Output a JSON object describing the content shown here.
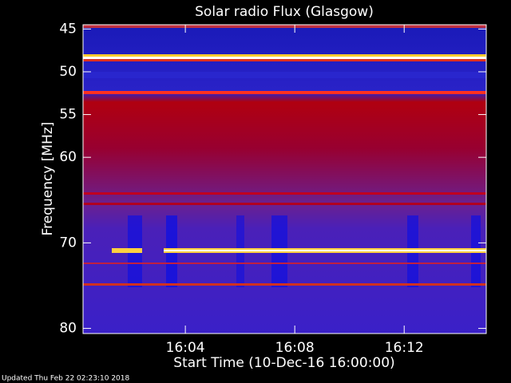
{
  "chart_data": {
    "type": "spectrogram",
    "title": "Solar radio Flux (Glasgow)",
    "xlabel": "Start Time (10-Dec-16 16:00:00)",
    "ylabel": "Frequency [MHz]",
    "footer": "Updated Thu Feb 22 02:23:10 2018",
    "xlim": [
      0.26,
      15.0
    ],
    "xticks": [
      {
        "value": 4,
        "label": "16:04"
      },
      {
        "value": 8,
        "label": "16:08"
      },
      {
        "value": 12,
        "label": "16:12"
      }
    ],
    "ylim": [
      80.6,
      44.5
    ],
    "yticks": [
      45,
      50,
      55,
      60,
      70,
      80
    ]
  }
}
